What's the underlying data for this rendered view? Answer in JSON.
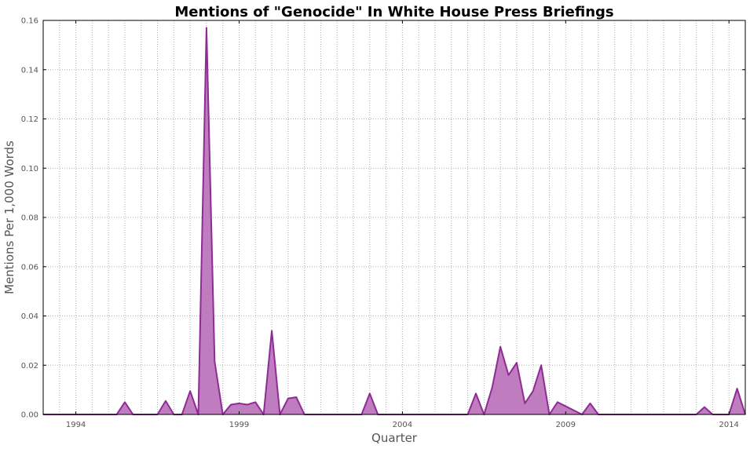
{
  "chart_data": {
    "type": "area",
    "title": "Mentions of \"Genocide\" In White House Press Briefings",
    "xlabel": "Quarter",
    "ylabel": "Mentions Per 1,000 Words",
    "xlim": [
      1993.0,
      2014.5
    ],
    "ylim": [
      0,
      0.16
    ],
    "xticks": [
      1994,
      1999,
      2004,
      2009,
      2014
    ],
    "xtick_labels": [
      "1994",
      "1999",
      "2004",
      "2009",
      "2014"
    ],
    "yticks": [
      0.0,
      0.02,
      0.04,
      0.06,
      0.08,
      0.1,
      0.12,
      0.14,
      0.16
    ],
    "ytick_labels": [
      "0.00",
      "0.02",
      "0.04",
      "0.06",
      "0.08",
      "0.10",
      "0.12",
      "0.14",
      "0.16"
    ],
    "minor_xtick_step": 0.5,
    "grid": true,
    "color": "#8e2b94",
    "fill_color": "#bf7dbf",
    "series": [
      {
        "x": [
          1993.0,
          1995.25,
          1995.5,
          1995.75,
          1996.5,
          1996.75,
          1997.0,
          1997.25,
          1997.5,
          1997.75,
          1998.0,
          1998.25,
          1998.5,
          1998.75,
          1999.0,
          1999.25,
          1999.5,
          1999.75,
          2000.0,
          2000.25,
          2000.5,
          2000.75,
          2001.0,
          2001.25,
          2002.75,
          2003.0,
          2003.25,
          2006.0,
          2006.25,
          2006.5,
          2006.75,
          2007.0,
          2007.25,
          2007.5,
          2007.75,
          2008.0,
          2008.25,
          2008.5,
          2008.75,
          2009.5,
          2009.75,
          2010.0,
          2013.0,
          2013.25,
          2013.5,
          2014.0,
          2014.25,
          2014.5
        ],
        "y": [
          0,
          0,
          0.005,
          0,
          0,
          0.0055,
          0,
          0,
          0.0095,
          0,
          0.157,
          0.0215,
          0,
          0.004,
          0.0045,
          0.004,
          0.005,
          0,
          0.034,
          0,
          0.0065,
          0.007,
          0,
          0,
          0,
          0.0085,
          0,
          0,
          0.0085,
          0,
          0.011,
          0.0275,
          0.016,
          0.021,
          0.0045,
          0.0095,
          0.02,
          0,
          0.005,
          0,
          0.0045,
          0,
          0,
          0.003,
          0,
          0,
          0.0105,
          0
        ]
      }
    ]
  }
}
